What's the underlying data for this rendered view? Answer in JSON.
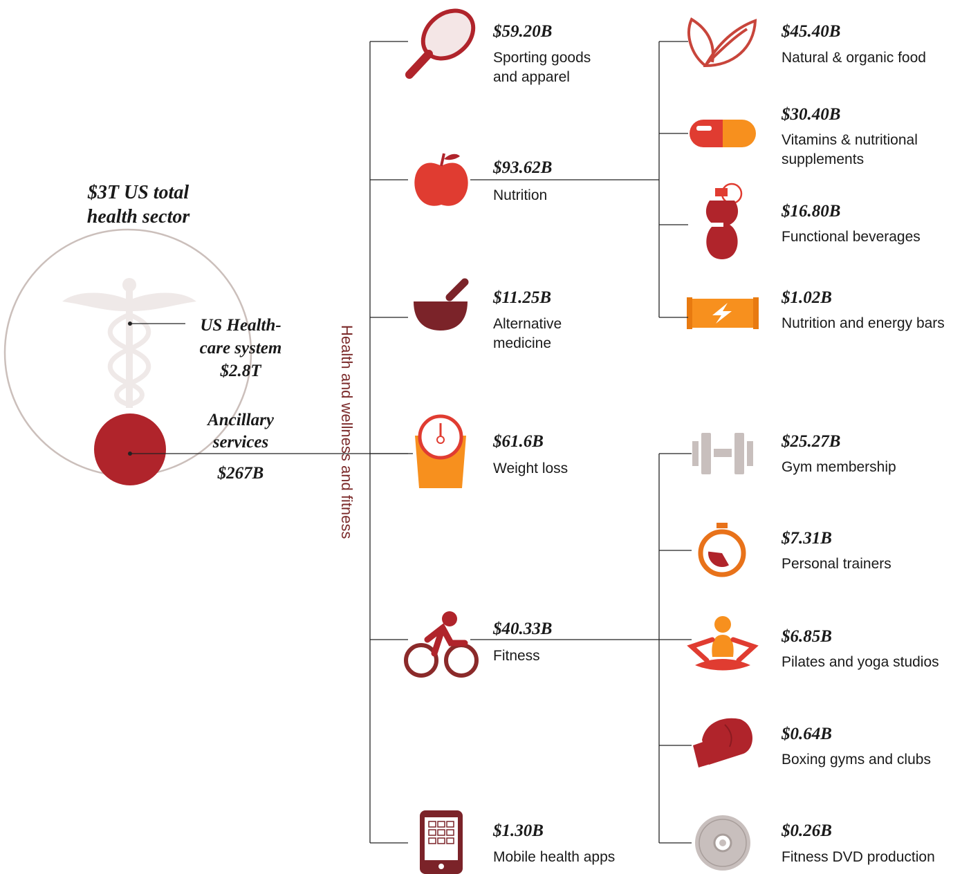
{
  "sector": {
    "title_lines": [
      "$3T US total",
      "health sector"
    ]
  },
  "healthcare": {
    "lines": [
      "US Health-",
      "care system",
      "$2.8T"
    ]
  },
  "ancillary": {
    "lines": [
      "Ancillary",
      "services"
    ],
    "value": "$267B"
  },
  "branch_label": "Health and wellness and fitness",
  "categories": [
    {
      "value": "$59.20B",
      "label_lines": [
        "Sporting goods",
        "and apparel"
      ]
    },
    {
      "value": "$93.62B",
      "label_lines": [
        "Nutrition"
      ]
    },
    {
      "value": "$11.25B",
      "label_lines": [
        "Alternative",
        "medicine"
      ]
    },
    {
      "value": "$61.6B",
      "label_lines": [
        "Weight loss"
      ]
    },
    {
      "value": "$40.33B",
      "label_lines": [
        "Fitness"
      ]
    },
    {
      "value": "$1.30B",
      "label_lines": [
        "Mobile health apps"
      ]
    }
  ],
  "nutrition_items": [
    {
      "value": "$45.40B",
      "label_lines": [
        "Natural & organic food"
      ]
    },
    {
      "value": "$30.40B",
      "label_lines": [
        "Vitamins & nutritional",
        "supplements"
      ]
    },
    {
      "value": "$16.80B",
      "label_lines": [
        "Functional beverages"
      ]
    },
    {
      "value": "$1.02B",
      "label_lines": [
        "Nutrition and energy bars"
      ]
    }
  ],
  "fitness_items": [
    {
      "value": "$25.27B",
      "label_lines": [
        "Gym membership"
      ]
    },
    {
      "value": "$7.31B",
      "label_lines": [
        "Personal trainers"
      ]
    },
    {
      "value": "$6.85B",
      "label_lines": [
        "Pilates and yoga studios"
      ]
    },
    {
      "value": "$0.64B",
      "label_lines": [
        "Boxing gyms and clubs"
      ]
    },
    {
      "value": "$0.26B",
      "label_lines": [
        "Fitness DVD production"
      ]
    }
  ]
}
